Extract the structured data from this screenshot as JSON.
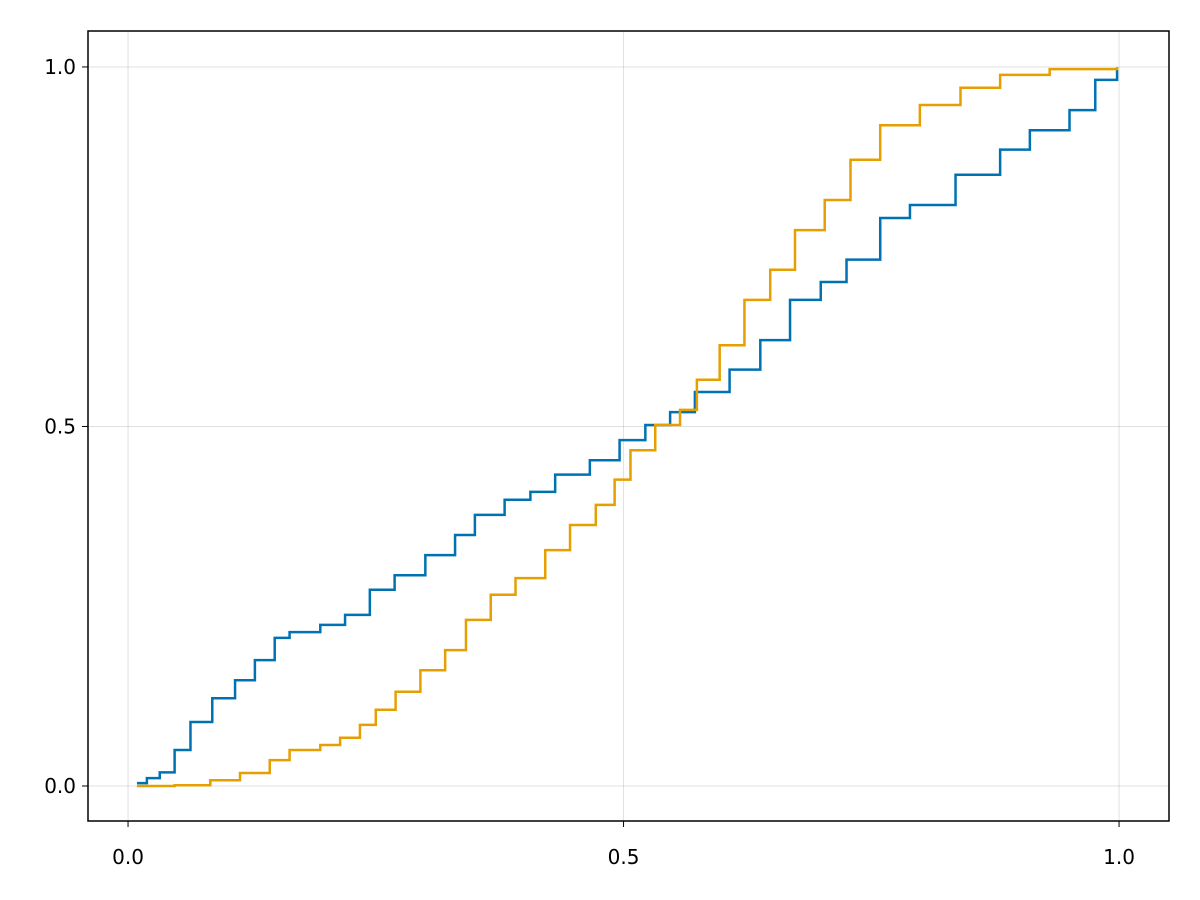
{
  "chart_data": {
    "type": "line",
    "step": true,
    "grid": true,
    "xlim": [
      -0.0404,
      1.0504
    ],
    "ylim": [
      -0.0487,
      1.05
    ],
    "xticks": [
      {
        "value": 0,
        "label": "0.0"
      },
      0.5,
      {
        "value": 1,
        "label": "1.0"
      }
    ],
    "yticks": [
      {
        "value": 0,
        "label": "0.0"
      },
      0.5,
      {
        "value": 1,
        "label": "1.0"
      }
    ],
    "series": [
      {
        "color": "#0072b2",
        "x": [
          0.009,
          0.019,
          0.032,
          0.047,
          0.063,
          0.085,
          0.108,
          0.128,
          0.148,
          0.163,
          0.194,
          0.219,
          0.244,
          0.269,
          0.3,
          0.33,
          0.35,
          0.38,
          0.406,
          0.431,
          0.466,
          0.496,
          0.522,
          0.547,
          0.572,
          0.607,
          0.638,
          0.668,
          0.699,
          0.725,
          0.759,
          0.789,
          0.835,
          0.88,
          0.91,
          0.95,
          0.976,
          0.998
        ],
        "values": [
          0.004,
          0.011,
          0.019,
          0.05,
          0.089,
          0.122,
          0.147,
          0.175,
          0.206,
          0.214,
          0.224,
          0.238,
          0.273,
          0.293,
          0.321,
          0.349,
          0.377,
          0.398,
          0.409,
          0.433,
          0.453,
          0.481,
          0.502,
          0.52,
          0.548,
          0.579,
          0.62,
          0.676,
          0.701,
          0.732,
          0.79,
          0.808,
          0.85,
          0.885,
          0.912,
          0.94,
          0.982,
          0.996
        ]
      },
      {
        "color": "#e69f00",
        "x": [
          0.009,
          0.047,
          0.083,
          0.113,
          0.143,
          0.163,
          0.194,
          0.214,
          0.234,
          0.25,
          0.27,
          0.295,
          0.32,
          0.341,
          0.366,
          0.391,
          0.421,
          0.446,
          0.472,
          0.491,
          0.507,
          0.532,
          0.557,
          0.574,
          0.597,
          0.622,
          0.648,
          0.673,
          0.703,
          0.729,
          0.759,
          0.799,
          0.84,
          0.88,
          0.93,
          0.998
        ],
        "values": [
          0,
          0.001,
          0.008,
          0.018,
          0.036,
          0.05,
          0.057,
          0.067,
          0.085,
          0.106,
          0.131,
          0.161,
          0.189,
          0.231,
          0.266,
          0.289,
          0.328,
          0.363,
          0.391,
          0.426,
          0.467,
          0.502,
          0.523,
          0.565,
          0.613,
          0.676,
          0.718,
          0.773,
          0.815,
          0.871,
          0.919,
          0.947,
          0.971,
          0.989,
          0.997,
          1.0
        ]
      }
    ]
  }
}
